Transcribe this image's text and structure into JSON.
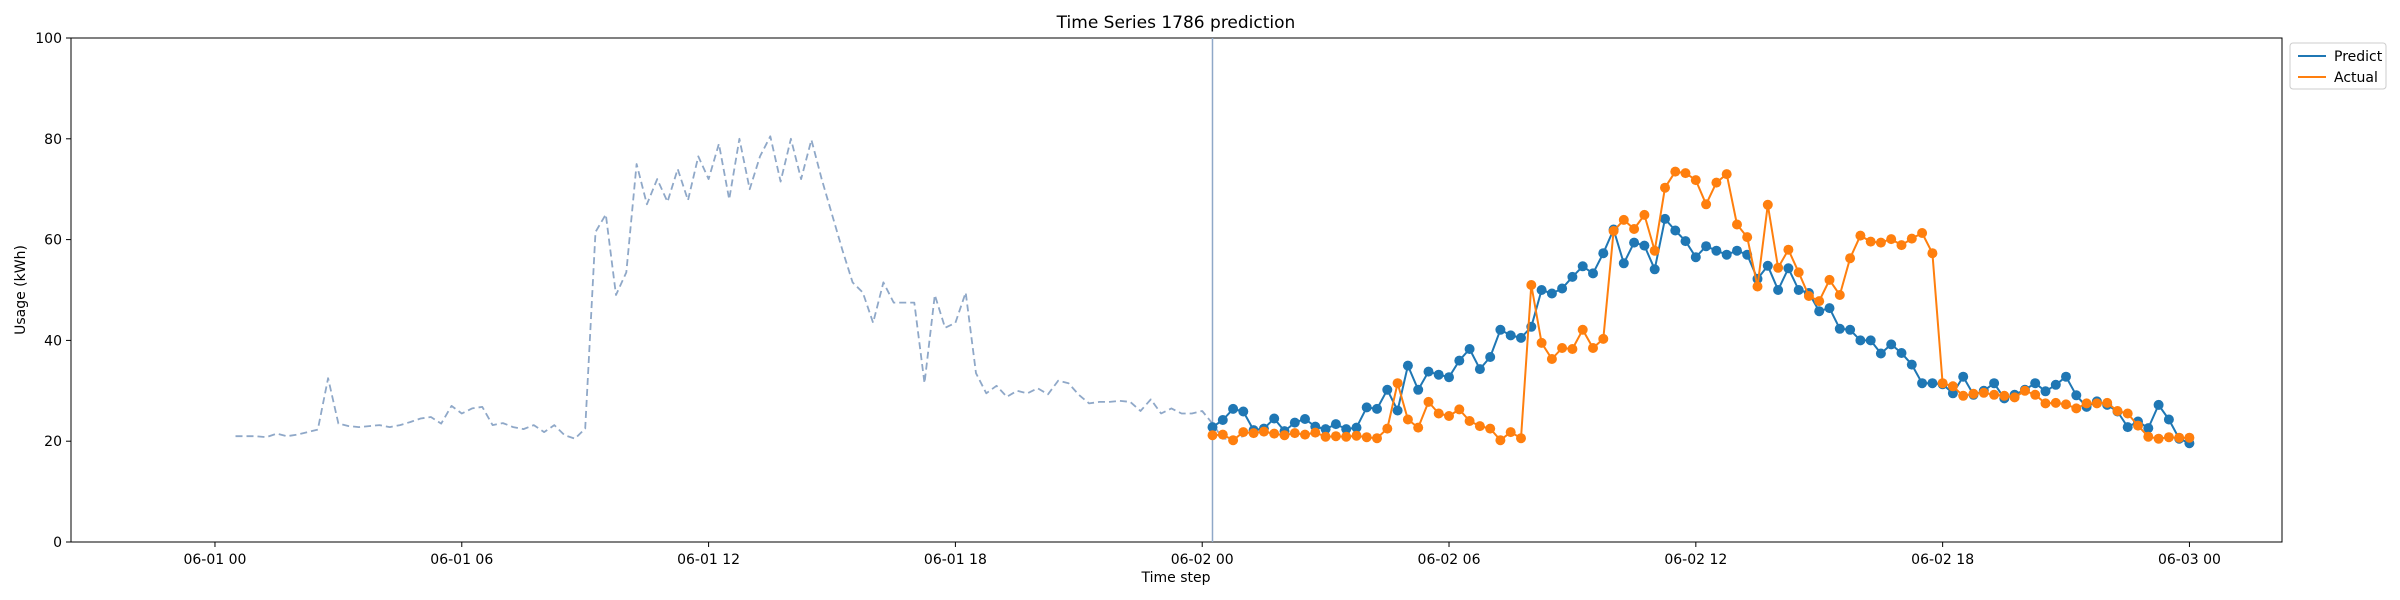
{
  "chart_data": {
    "type": "line",
    "title": "Time Series 1786 prediction",
    "xlabel": "Time step",
    "ylabel": "Usage (kWh)",
    "ylim": [
      0,
      100
    ],
    "yticks": [
      0,
      20,
      40,
      60,
      80,
      100
    ],
    "xlim": [
      -3.5,
      50.25
    ],
    "xticks": [
      {
        "label": "06-01 00",
        "value": 0
      },
      {
        "label": "06-01 06",
        "value": 6
      },
      {
        "label": "06-01 12",
        "value": 12
      },
      {
        "label": "06-01 18",
        "value": 18
      },
      {
        "label": "06-02 00",
        "value": 24
      },
      {
        "label": "06-02 06",
        "value": 30
      },
      {
        "label": "06-02 12",
        "value": 36
      },
      {
        "label": "06-02 18",
        "value": 42
      },
      {
        "label": "06-03 00",
        "value": 48
      }
    ],
    "forecast_start": 24.25,
    "legend": {
      "position": "top-right outside",
      "entries": [
        "Predict",
        "Actual"
      ]
    },
    "colors": {
      "predict": "#1f77b4",
      "actual": "#ff7f0e",
      "history": "#8fa8c8",
      "forecast_line": "#8fa8c8"
    },
    "series": [
      {
        "key": "history",
        "style": "dashed",
        "start": 0.5,
        "step": 0.25,
        "values": [
          21,
          21,
          21,
          20.8,
          21.5,
          21,
          21.3,
          21.8,
          22.3,
          32.5,
          23.5,
          23,
          22.8,
          23,
          23.2,
          22.8,
          23.2,
          23.8,
          24.5,
          24.8,
          23.5,
          27,
          25.5,
          26.5,
          26.8,
          23.2,
          23.6,
          22.8,
          22.4,
          23.2,
          21.8,
          23.2,
          21.2,
          20.5,
          22.5,
          61.5,
          65,
          49,
          53.5,
          75,
          67,
          72,
          67.5,
          74,
          67.8,
          76.5,
          72,
          79,
          68,
          80,
          70,
          76.5,
          80.5,
          71.5,
          80,
          72,
          79.8,
          72,
          65,
          58,
          51.5,
          49.5,
          43.5,
          51.5,
          47.5,
          47.5,
          47.5,
          31.5,
          49,
          42.5,
          43.5,
          49.5,
          33.5,
          29.5,
          31,
          28.8,
          30,
          29.5,
          30.5,
          29.3,
          32,
          31.5,
          29.2,
          27.5,
          27.8,
          27.8,
          28,
          27.8,
          26,
          28.3,
          25.5,
          26.5,
          25.5,
          25.5,
          26,
          23.5,
          20.5,
          20.5,
          21
        ]
      },
      {
        "key": "predict",
        "name": "Predict",
        "start": 24.25,
        "step": 0.25,
        "values": [
          22.8,
          24.2,
          26.4,
          25.9,
          22.2,
          22.5,
          24.5,
          22.0,
          23.7,
          24.4,
          22.9,
          22.4,
          23.4,
          22.4,
          22.7,
          26.7,
          26.4,
          30.2,
          26.1,
          35.0,
          30.2,
          33.8,
          33.2,
          32.7,
          36.0,
          38.3,
          34.3,
          36.7,
          42.1,
          41.0,
          40.5,
          42.7,
          50.0,
          49.3,
          50.3,
          52.6,
          54.7,
          53.3,
          57.3,
          62.0,
          55.3,
          59.4,
          58.8,
          54.1,
          64.1,
          61.8,
          59.7,
          56.5,
          58.7,
          57.8,
          57.0,
          57.8,
          57.0,
          52.2,
          54.8,
          50.0,
          54.3,
          50.0,
          49.4,
          45.8,
          46.4,
          42.3,
          42.1,
          40.0,
          40.0,
          37.4,
          39.2,
          37.5,
          35.2,
          31.5,
          31.5,
          31.3,
          29.5,
          32.8,
          29.2,
          30.0,
          31.5,
          28.5,
          29.2,
          30.2,
          31.5,
          29.9,
          31.2,
          32.8,
          29.1,
          26.8,
          27.9,
          27.2,
          25.9,
          22.8,
          23.9,
          22.6,
          27.2,
          24.3,
          20.5,
          19.6
        ]
      },
      {
        "key": "actual",
        "name": "Actual",
        "start": 24.25,
        "step": 0.25,
        "values": [
          21.2,
          21.3,
          20.2,
          21.8,
          21.6,
          21.9,
          21.5,
          21.2,
          21.6,
          21.3,
          21.7,
          20.9,
          21.0,
          20.9,
          21.1,
          20.8,
          20.6,
          22.5,
          31.5,
          24.3,
          22.7,
          27.8,
          25.5,
          25.0,
          26.3,
          24.0,
          23.0,
          22.5,
          20.2,
          21.8,
          20.6,
          51.0,
          39.5,
          36.3,
          38.5,
          38.3,
          42.1,
          38.5,
          40.3,
          61.7,
          63.9,
          62.1,
          64.9,
          57.8,
          70.3,
          73.5,
          73.2,
          71.8,
          67.0,
          71.3,
          73.0,
          63.0,
          60.5,
          50.7,
          66.9,
          54.4,
          58.0,
          53.5,
          48.8,
          47.8,
          52.0,
          49.0,
          56.3,
          60.8,
          59.6,
          59.4,
          60.1,
          58.9,
          60.2,
          61.3,
          57.3,
          31.5,
          30.9,
          29.0,
          29.4,
          29.6,
          29.2,
          29.0,
          28.7,
          30.0,
          29.2,
          27.5,
          27.6,
          27.3,
          26.5,
          27.5,
          27.5,
          27.6,
          26.0,
          25.5,
          23.1,
          20.9,
          20.5,
          20.8,
          20.7,
          20.7
        ]
      }
    ]
  }
}
